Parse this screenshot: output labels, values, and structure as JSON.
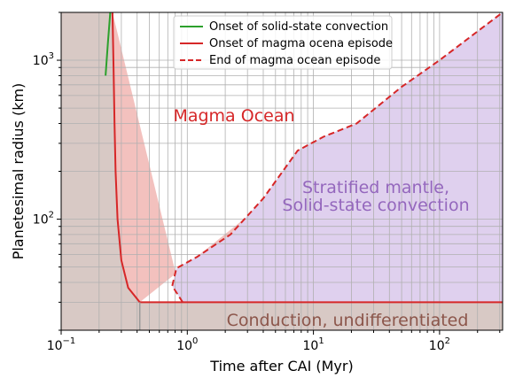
{
  "chart_data": {
    "type": "area",
    "title": "",
    "xlabel": "Time after CAI (Myr)",
    "ylabel": "Planetesimal radius (km)",
    "xscale": "log",
    "yscale": "log",
    "xlim": [
      0.1,
      316
    ],
    "ylim": [
      20,
      2000
    ],
    "grid": true,
    "legend_position": "top-center",
    "x_ticks": [
      {
        "value": 0.1,
        "base": "10",
        "exp": "−1"
      },
      {
        "value": 1,
        "base": "10",
        "exp": "0"
      },
      {
        "value": 10,
        "base": "10",
        "exp": "1"
      },
      {
        "value": 100,
        "base": "10",
        "exp": "2"
      }
    ],
    "y_ticks": [
      {
        "value": 100,
        "base": "10",
        "exp": "2"
      },
      {
        "value": 1000,
        "base": "10",
        "exp": "3"
      }
    ],
    "regions": [
      {
        "label": "Magma Ocean",
        "color": "#d62728",
        "fill": "#f3c1be"
      },
      {
        "label_lines": [
          "Stratified mantle,",
          "Solid-state convection"
        ],
        "color": "#9467bd",
        "fill": "#dfd0ee"
      },
      {
        "label": "Conduction, undifferentiated",
        "color": "#8c564b",
        "fill": "#d8c9c5"
      }
    ],
    "series": [
      {
        "name": "Onset of solid-state convection",
        "color": "#2ca02c",
        "style": "solid",
        "x": [
          0.245,
          0.235,
          0.225
        ],
        "y": [
          2000,
          1300,
          800
        ]
      },
      {
        "name": "Onset of magma ocena episode",
        "color": "#d62728",
        "style": "solid",
        "x": [
          0.255,
          0.26,
          0.265,
          0.27,
          0.28,
          0.3,
          0.34,
          0.42,
          316
        ],
        "y": [
          2000,
          900,
          400,
          200,
          100,
          55,
          37,
          30,
          30
        ]
      },
      {
        "name": "End of magma ocean episode",
        "color": "#d62728",
        "style": "dashed",
        "x": [
          0.92,
          0.76,
          0.82,
          1.2,
          2.2,
          4.0,
          7.5,
          12,
          22,
          50,
          100,
          316
        ],
        "y": [
          30,
          38,
          49,
          58,
          80,
          135,
          270,
          330,
          400,
          680,
          1000,
          2000
        ]
      }
    ],
    "conduction_boundary_x": [
      0.42,
      0.42
    ],
    "conduction_boundary_y": [
      30,
      20
    ]
  }
}
